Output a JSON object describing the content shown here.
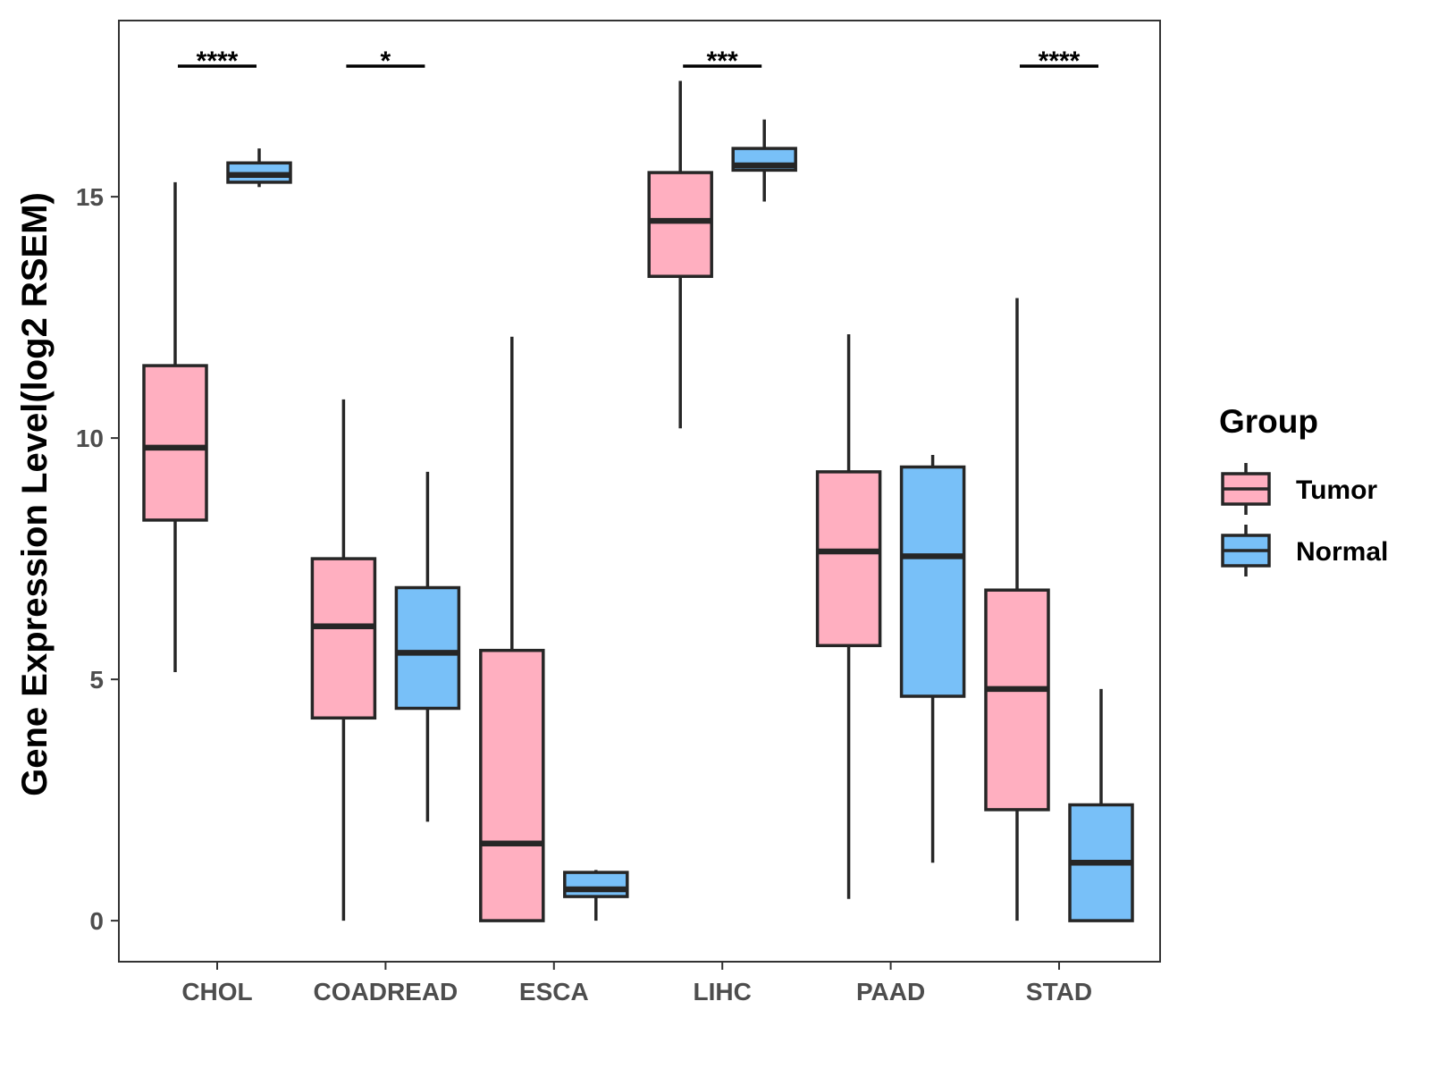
{
  "chart_data": {
    "type": "boxplot",
    "title": "",
    "xlabel": "",
    "ylabel": "Gene Expression Level(log2 RSEM)",
    "ylim": [
      -0.85,
      18.65
    ],
    "yticks": [
      0,
      5,
      10,
      15
    ],
    "categories": [
      "CHOL",
      "COADREAD",
      "ESCA",
      "LIHC",
      "PAAD",
      "STAD"
    ],
    "legend": {
      "title": "Group",
      "position": "right",
      "entries": [
        "Tumor",
        "Normal"
      ]
    },
    "colors": {
      "Tumor": "#ffafc0",
      "Normal": "#78c0f8",
      "stroke": "#262626",
      "panel_border": "#333333",
      "tick_text": "#4d4d4d"
    },
    "series": [
      {
        "name": "Tumor",
        "boxes": [
          {
            "category": "CHOL",
            "min": 5.15,
            "q1": 8.3,
            "median": 9.8,
            "q3": 11.5,
            "max": 15.3
          },
          {
            "category": "COADREAD",
            "min": 0.0,
            "q1": 4.2,
            "median": 6.1,
            "q3": 7.5,
            "max": 10.8
          },
          {
            "category": "ESCA",
            "min": 0.0,
            "q1": 0.0,
            "median": 1.6,
            "q3": 5.6,
            "max": 12.1
          },
          {
            "category": "LIHC",
            "min": 10.2,
            "q1": 13.35,
            "median": 14.5,
            "q3": 15.5,
            "max": 17.4
          },
          {
            "category": "PAAD",
            "min": 0.45,
            "q1": 5.7,
            "median": 7.65,
            "q3": 9.3,
            "max": 12.15
          },
          {
            "category": "STAD",
            "min": 0.0,
            "q1": 2.3,
            "median": 4.8,
            "q3": 6.85,
            "max": 12.9
          }
        ]
      },
      {
        "name": "Normal",
        "boxes": [
          {
            "category": "CHOL",
            "min": 15.2,
            "q1": 15.3,
            "median": 15.45,
            "q3": 15.7,
            "max": 16.0
          },
          {
            "category": "COADREAD",
            "min": 2.05,
            "q1": 4.4,
            "median": 5.55,
            "q3": 6.9,
            "max": 9.3
          },
          {
            "category": "ESCA",
            "min": 0.0,
            "q1": 0.5,
            "median": 0.65,
            "q3": 1.0,
            "max": 1.05
          },
          {
            "category": "LIHC",
            "min": 14.9,
            "q1": 15.55,
            "median": 15.65,
            "q3": 16.0,
            "max": 16.6
          },
          {
            "category": "PAAD",
            "min": 1.2,
            "q1": 4.65,
            "median": 7.55,
            "q3": 9.4,
            "max": 9.65
          },
          {
            "category": "STAD",
            "min": 0.0,
            "q1": 0.0,
            "median": 1.2,
            "q3": 2.4,
            "max": 4.8
          }
        ]
      }
    ],
    "significance": [
      {
        "category": "CHOL",
        "label": "****"
      },
      {
        "category": "COADREAD",
        "label": "*"
      },
      {
        "category": "ESCA",
        "label": ""
      },
      {
        "category": "LIHC",
        "label": "***"
      },
      {
        "category": "PAAD",
        "label": ""
      },
      {
        "category": "STAD",
        "label": "****"
      }
    ]
  }
}
